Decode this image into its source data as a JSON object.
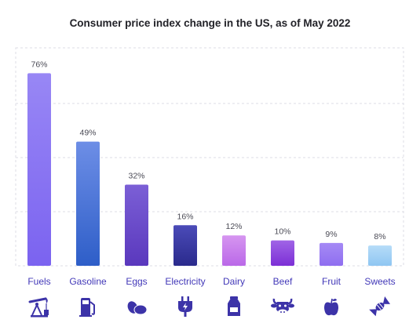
{
  "chart_data": {
    "type": "bar",
    "title": "Consumer price index change in the US, as of May 2022",
    "categories": [
      "Fuels",
      "Gasoline",
      "Eggs",
      "Electricity",
      "Dairy",
      "Beef",
      "Fruit",
      "Sweets"
    ],
    "values": [
      76,
      49,
      32,
      16,
      12,
      10,
      9,
      8
    ],
    "value_labels": [
      "76%",
      "49%",
      "32%",
      "16%",
      "12%",
      "10%",
      "9%",
      "8%"
    ],
    "icons": [
      "oil-pump-icon",
      "fuel-pump-icon",
      "eggs-icon",
      "electric-plug-icon",
      "milk-bottle-icon",
      "cow-head-icon",
      "apple-icon",
      "candy-icon"
    ],
    "colors": {
      "top": [
        "#9887f5",
        "#6d8ee6",
        "#7b5fd6",
        "#4b4bb8",
        "#d696f0",
        "#a064e6",
        "#a58af5",
        "#b6dcf8"
      ],
      "bottom": [
        "#7b63f0",
        "#2e5ec8",
        "#5a38bd",
        "#2a2a8c",
        "#ba68e8",
        "#7c2fd6",
        "#8f6ef0",
        "#8fc6f2"
      ],
      "category_text": "#4238b8",
      "icon": "#3c33a8"
    },
    "ylim": [
      0,
      86
    ],
    "grid": true,
    "xlabel": "",
    "ylabel": ""
  }
}
